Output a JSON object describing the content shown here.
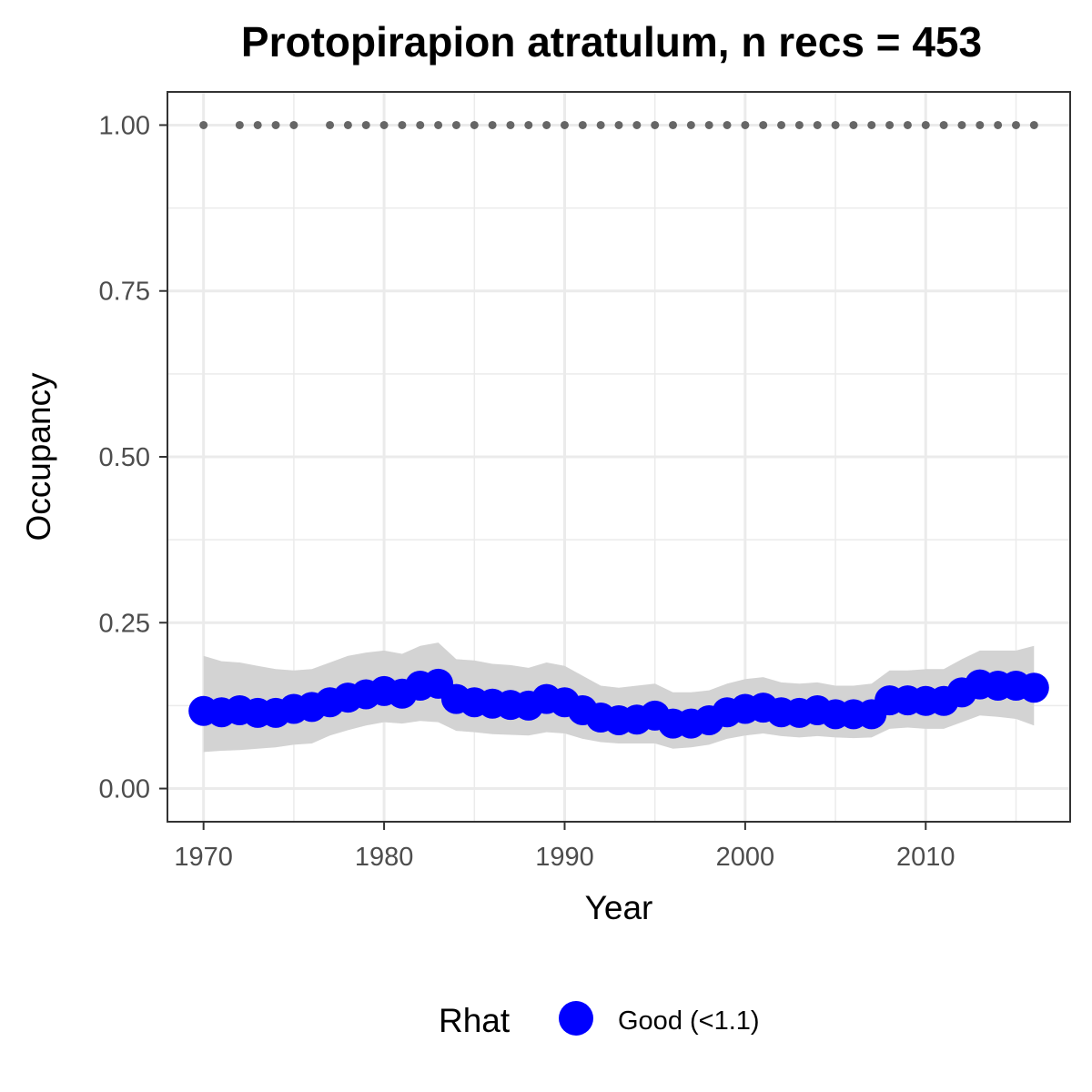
{
  "chart_data": {
    "type": "line",
    "title": "Protopirapion atratulum, n recs = 453",
    "xlabel": "Year",
    "ylabel": "Occupancy",
    "xlim": [
      1968,
      2018
    ],
    "ylim": [
      -0.05,
      1.05
    ],
    "xticks": [
      1970,
      1980,
      1990,
      2000,
      2010
    ],
    "xtick_labels": [
      "1970",
      "1980",
      "1990",
      "2000",
      "2010"
    ],
    "yticks": [
      0,
      0.25,
      0.5,
      0.75,
      1.0
    ],
    "ytick_labels": [
      "0.00",
      "0.25",
      "0.50",
      "0.75",
      "1.00"
    ],
    "grid": true,
    "legend": {
      "position": "bottom",
      "title": "Rhat",
      "items": [
        {
          "label": "Good (<1.1)",
          "color": "#0000ff"
        }
      ]
    },
    "colors": {
      "occupancy_points": "#0000ff",
      "ci_ribbon": "#d3d3d3",
      "record_points": "#666666"
    },
    "series": [
      {
        "name": "Good (<1.1)",
        "x": [
          1970,
          1971,
          1972,
          1973,
          1974,
          1975,
          1976,
          1977,
          1978,
          1979,
          1980,
          1981,
          1982,
          1983,
          1984,
          1985,
          1986,
          1987,
          1988,
          1989,
          1990,
          1991,
          1992,
          1993,
          1994,
          1995,
          1996,
          1997,
          1998,
          1999,
          2000,
          2001,
          2002,
          2003,
          2004,
          2005,
          2006,
          2007,
          2008,
          2009,
          2010,
          2011,
          2012,
          2013,
          2014,
          2015,
          2016
        ],
        "y": [
          0.117,
          0.115,
          0.118,
          0.114,
          0.114,
          0.12,
          0.123,
          0.13,
          0.137,
          0.142,
          0.147,
          0.143,
          0.155,
          0.158,
          0.135,
          0.13,
          0.128,
          0.126,
          0.125,
          0.135,
          0.13,
          0.118,
          0.107,
          0.103,
          0.104,
          0.11,
          0.098,
          0.098,
          0.103,
          0.115,
          0.12,
          0.122,
          0.115,
          0.114,
          0.118,
          0.112,
          0.112,
          0.112,
          0.133,
          0.133,
          0.132,
          0.132,
          0.145,
          0.157,
          0.155,
          0.155,
          0.152
        ],
        "lower": [
          0.055,
          0.057,
          0.058,
          0.06,
          0.062,
          0.066,
          0.068,
          0.08,
          0.088,
          0.095,
          0.1,
          0.098,
          0.102,
          0.1,
          0.087,
          0.085,
          0.082,
          0.081,
          0.08,
          0.085,
          0.083,
          0.075,
          0.07,
          0.068,
          0.068,
          0.068,
          0.06,
          0.062,
          0.066,
          0.075,
          0.08,
          0.083,
          0.079,
          0.077,
          0.079,
          0.077,
          0.076,
          0.077,
          0.09,
          0.092,
          0.09,
          0.09,
          0.1,
          0.11,
          0.108,
          0.105,
          0.095
        ],
        "upper": [
          0.2,
          0.192,
          0.19,
          0.185,
          0.18,
          0.178,
          0.18,
          0.19,
          0.2,
          0.205,
          0.208,
          0.203,
          0.215,
          0.22,
          0.195,
          0.193,
          0.188,
          0.186,
          0.182,
          0.19,
          0.185,
          0.17,
          0.155,
          0.152,
          0.155,
          0.158,
          0.145,
          0.145,
          0.148,
          0.158,
          0.165,
          0.168,
          0.16,
          0.158,
          0.16,
          0.155,
          0.155,
          0.158,
          0.178,
          0.178,
          0.18,
          0.18,
          0.195,
          0.208,
          0.208,
          0.208,
          0.215
        ]
      }
    ],
    "record_years": [
      1970,
      1972,
      1973,
      1974,
      1975,
      1977,
      1978,
      1979,
      1980,
      1981,
      1982,
      1983,
      1984,
      1985,
      1986,
      1987,
      1988,
      1989,
      1990,
      1991,
      1992,
      1993,
      1994,
      1995,
      1996,
      1997,
      1998,
      1999,
      2000,
      2001,
      2002,
      2003,
      2004,
      2005,
      2006,
      2007,
      2008,
      2009,
      2010,
      2011,
      2012,
      2013,
      2014,
      2015,
      2016
    ],
    "record_value": 1.0
  }
}
